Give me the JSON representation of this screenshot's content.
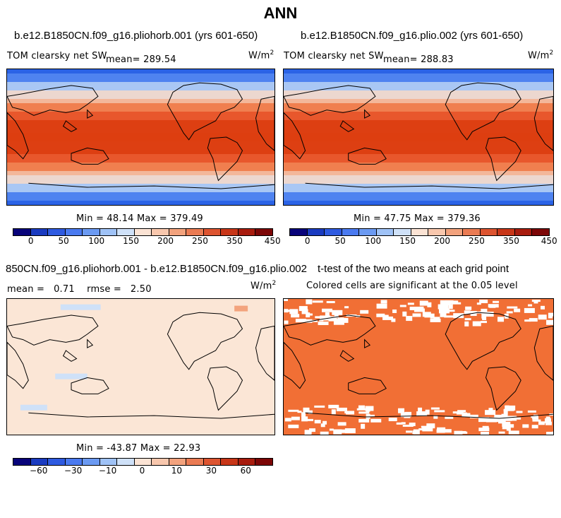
{
  "page": {
    "title": "ANN"
  },
  "panels": {
    "p1": {
      "case": "b.e12.B1850CN.f09_g16.pliohorb.001 (yrs 601-650)",
      "variable": "TOM clearsky net SW",
      "mean": "mean= 289.54",
      "units": "W/m",
      "units_exp": "2",
      "minmax": "Min =  48.14 Max = 379.49"
    },
    "p2": {
      "case": "b.e12.B1850CN.f09_g16.plio.002 (yrs 601-650)",
      "variable": "TOM clearsky net SW",
      "mean": "mean= 288.83",
      "units": "W/m",
      "units_exp": "2",
      "minmax": "Min =  47.75 Max = 379.36"
    },
    "p3": {
      "case": "850CN.f09_g16.pliohorb.001 - b.e12.B1850CN.f09_g16.plio.002",
      "stats": "mean =   0.71    rmse =   2.50",
      "units": "W/m",
      "units_exp": "2",
      "minmax": "Min = -43.87 Max =  22.93"
    },
    "p4": {
      "title": "t-test of the two means at each grid point",
      "subtitle": "Colored cells are significant at the 0.05 level"
    }
  },
  "colorbars": {
    "abs": {
      "colors": [
        "#08037a",
        "#1a3bc0",
        "#2e5ae0",
        "#4a7af0",
        "#6b9af2",
        "#9fc2f6",
        "#cfe1f8",
        "#fbe3d4",
        "#f8c7ad",
        "#f2a27d",
        "#ea7b53",
        "#dd5430",
        "#c83618",
        "#a81c0e",
        "#7c0606"
      ],
      "labels": [
        "0",
        "50",
        "100",
        "150",
        "200",
        "250",
        "350",
        "450"
      ]
    },
    "diff": {
      "colors": [
        "#08037a",
        "#1a3bc0",
        "#2e5ae0",
        "#4a7af0",
        "#6b9af2",
        "#9fc2f6",
        "#cfe1f8",
        "#fbe3d4",
        "#f8c7ad",
        "#f2a27d",
        "#ea7b53",
        "#dd5430",
        "#c83618",
        "#a81c0e",
        "#7c0606"
      ],
      "labels": [
        "−60",
        "−30",
        "−10",
        "0",
        "10",
        "30",
        "60"
      ]
    }
  },
  "chart_data": [
    {
      "type": "heatmap",
      "title": "b.e12.B1850CN.f09_g16.pliohorb.001 (yrs 601-650)",
      "variable": "TOM clearsky net SW",
      "units": "W/m2",
      "mean": 289.54,
      "min": 48.14,
      "max": 379.49,
      "colorbar_ticks": [
        0,
        50,
        100,
        150,
        200,
        250,
        350,
        450
      ]
    },
    {
      "type": "heatmap",
      "title": "b.e12.B1850CN.f09_g16.plio.002 (yrs 601-650)",
      "variable": "TOM clearsky net SW",
      "units": "W/m2",
      "mean": 288.83,
      "min": 47.75,
      "max": 379.36,
      "colorbar_ticks": [
        0,
        50,
        100,
        150,
        200,
        250,
        350,
        450
      ]
    },
    {
      "type": "heatmap",
      "title": "850CN.f09_g16.pliohorb.001 - b.e12.B1850CN.f09_g16.plio.002",
      "units": "W/m2",
      "mean": 0.71,
      "rmse": 2.5,
      "min": -43.87,
      "max": 22.93,
      "colorbar_ticks": [
        -60,
        -30,
        -10,
        0,
        10,
        30,
        60
      ]
    },
    {
      "type": "heatmap",
      "title": "t-test of the two means at each grid point",
      "subtitle": "Colored cells are significant at the 0.05 level",
      "significance_level": 0.05
    }
  ]
}
